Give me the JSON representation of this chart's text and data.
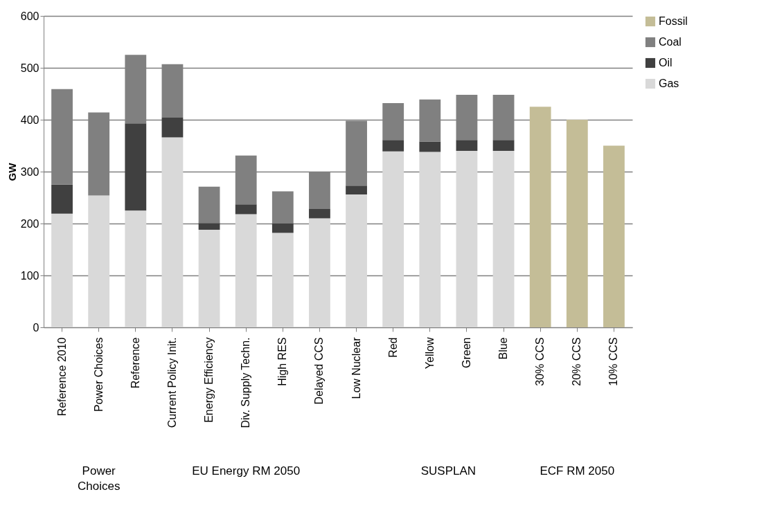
{
  "chart_data": {
    "type": "bar",
    "stacked": true,
    "ylabel": "GW",
    "ylim": [
      0,
      600
    ],
    "yticks": [
      0,
      100,
      200,
      300,
      400,
      500,
      600
    ],
    "grid": "y",
    "legend": "right",
    "categories": [
      "Reference 2010",
      "Power Choices",
      "Reference",
      "Current Policy Init.",
      "Energy Efficiency",
      "Div. Supply Techn.",
      "High RES",
      "Delayed CCS",
      "Low Nuclear",
      "Red",
      "Yellow",
      "Green",
      "Blue",
      "30% CCS",
      "20% CCS",
      "10% CCS"
    ],
    "series": [
      {
        "name": "Gas",
        "color": "#d9d9d9",
        "values": [
          219,
          254,
          225,
          366,
          188,
          218,
          182,
          210,
          256,
          339,
          338,
          340,
          340,
          null,
          null,
          null
        ]
      },
      {
        "name": "Oil",
        "color": "#404040",
        "values": [
          56,
          0,
          168,
          38,
          13,
          19,
          18,
          18,
          17,
          22,
          20,
          21,
          21,
          null,
          null,
          null
        ]
      },
      {
        "name": "Coal",
        "color": "#808080",
        "values": [
          184,
          160,
          132,
          103,
          70,
          94,
          62,
          72,
          125,
          71,
          81,
          87,
          87,
          null,
          null,
          null
        ]
      },
      {
        "name": "Fossil",
        "color": "#c4bd97",
        "values": [
          null,
          null,
          null,
          null,
          null,
          null,
          null,
          null,
          null,
          null,
          null,
          null,
          null,
          425,
          400,
          350
        ]
      }
    ],
    "annotations": [
      "Power Choices",
      "EU Energy RM 2050",
      "SUSPLAN",
      "ECF RM 2050"
    ]
  }
}
